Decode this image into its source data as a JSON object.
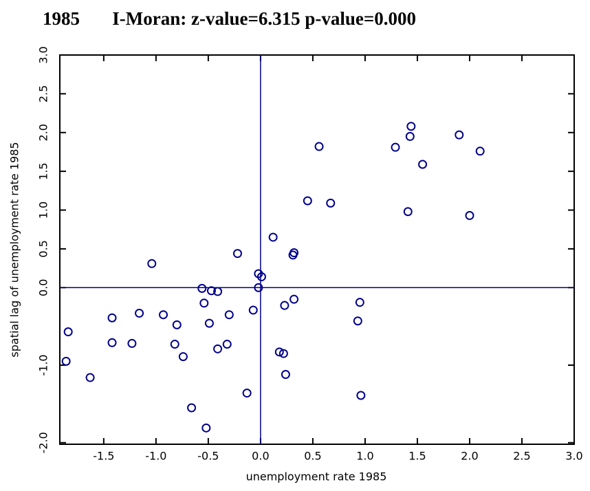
{
  "chart_data": {
    "type": "scatter",
    "title": "1985       I-Moran: z-value=6.315 p-value=0.000",
    "x_label": "unemployment rate 1985",
    "y_label": "spatial lag of unemployment rate 1985",
    "color": "#00008b",
    "x": [
      1.44,
      1.43,
      1.9,
      1.29,
      0.56,
      2.1,
      1.55,
      0.45,
      0.67,
      1.41,
      2.0,
      0.12,
      0.32,
      0.31,
      -0.22,
      -1.04,
      -0.02,
      0.01,
      -0.02,
      -0.56,
      -0.47,
      -0.41,
      -0.54,
      0.32,
      0.23,
      0.95,
      -0.07,
      -1.16,
      -0.93,
      -1.42,
      -0.3,
      -0.49,
      0.93,
      -0.8,
      -1.84,
      -1.42,
      -1.23,
      -0.74,
      -0.82,
      -0.32,
      -0.41,
      0.18,
      0.22,
      -1.86,
      -1.63,
      0.24,
      -0.13,
      0.96,
      -0.66,
      -0.52
    ],
    "values": [
      2.08,
      1.95,
      1.97,
      1.81,
      1.82,
      1.76,
      1.59,
      1.12,
      1.09,
      0.98,
      0.93,
      0.65,
      0.45,
      0.42,
      0.44,
      0.31,
      0.18,
      0.14,
      0.0,
      -0.01,
      -0.04,
      -0.05,
      -0.2,
      -0.15,
      -0.23,
      -0.19,
      -0.29,
      -0.33,
      -0.35,
      -0.39,
      -0.35,
      -0.46,
      -0.43,
      -0.48,
      -0.57,
      -0.71,
      -0.72,
      -0.89,
      -0.73,
      -0.73,
      -0.79,
      -0.83,
      -0.85,
      -0.95,
      -1.16,
      -1.12,
      -1.36,
      -1.39,
      -1.55,
      -1.81
    ],
    "xlim": [
      -1.92,
      3.0
    ],
    "ylim": [
      -2.02,
      3.0
    ],
    "xticks": [
      -1.5,
      {
        "value": -1.0,
        "label": "-1.0"
      },
      -0.5,
      {
        "value": 0,
        "label": "0.0"
      },
      0.5,
      {
        "value": 1.0,
        "label": "1.0"
      },
      1.5,
      {
        "value": 2.0,
        "label": "2.0"
      },
      2.5,
      {
        "value": 3.0,
        "label": "3.0"
      }
    ],
    "yticks": [
      {
        "value": -2.0,
        "label": "-2.0"
      },
      {
        "value": -1.0,
        "label": "-1.0"
      },
      {
        "value": 0,
        "label": "0.0"
      },
      0.5,
      {
        "value": 1.0,
        "label": "1.0"
      },
      1.5,
      {
        "value": 2.0,
        "label": "2.0"
      },
      2.5,
      {
        "value": 3.0,
        "label": "3.0"
      }
    ],
    "reference_lines": {
      "x": 0,
      "y": 0
    }
  }
}
